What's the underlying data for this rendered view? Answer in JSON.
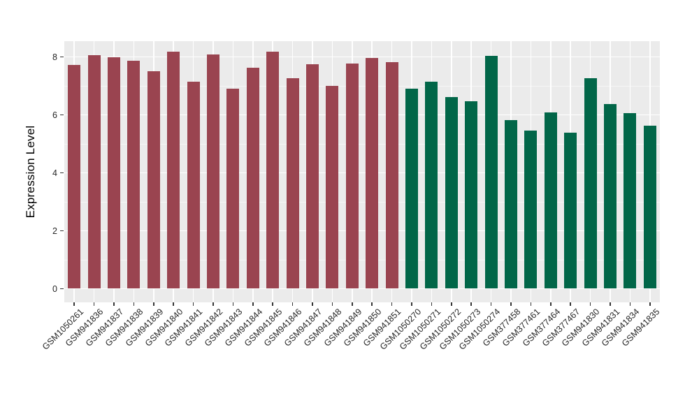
{
  "chart_data": {
    "type": "bar",
    "title": "",
    "xlabel": "",
    "ylabel": "Expression Level",
    "ylim": [
      0,
      8.55
    ],
    "yticks": [
      0,
      2,
      4,
      6,
      8
    ],
    "yticks_minor": [
      1,
      3,
      5,
      7
    ],
    "grid": true,
    "legend_position": "none",
    "panel_background": "#EBEBEB",
    "grid_major_color": "#FFFFFF",
    "categories": [
      "GSM1050261",
      "GSM941836",
      "GSM941837",
      "GSM941838",
      "GSM941839",
      "GSM941840",
      "GSM941841",
      "GSM941842",
      "GSM941843",
      "GSM941844",
      "GSM941845",
      "GSM941846",
      "GSM941847",
      "GSM941848",
      "GSM941849",
      "GSM941850",
      "GSM941851",
      "GSM1050270",
      "GSM1050271",
      "GSM1050272",
      "GSM1050273",
      "GSM1050274",
      "GSM377458",
      "GSM377461",
      "GSM377464",
      "GSM377467",
      "GSM941830",
      "GSM941831",
      "GSM941834",
      "GSM941835"
    ],
    "values": [
      7.74,
      8.07,
      8.0,
      7.88,
      7.52,
      8.19,
      7.15,
      8.08,
      6.9,
      7.64,
      8.19,
      7.28,
      7.76,
      7.01,
      7.78,
      7.97,
      7.83,
      6.9,
      7.16,
      6.63,
      6.47,
      8.05,
      5.82,
      5.47,
      6.1,
      5.4,
      7.26,
      6.37,
      6.07,
      5.62
    ],
    "groups": [
      "groupA",
      "groupA",
      "groupA",
      "groupA",
      "groupA",
      "groupA",
      "groupA",
      "groupA",
      "groupA",
      "groupA",
      "groupA",
      "groupA",
      "groupA",
      "groupA",
      "groupA",
      "groupA",
      "groupA",
      "groupB",
      "groupB",
      "groupB",
      "groupB",
      "groupB",
      "groupB",
      "groupB",
      "groupB",
      "groupB",
      "groupB",
      "groupB",
      "groupB",
      "groupB"
    ],
    "group_colors": {
      "groupA": "#9A4450",
      "groupB": "#016648"
    }
  }
}
